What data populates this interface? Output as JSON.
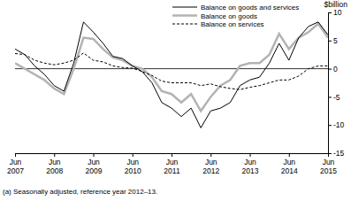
{
  "chart_data": {
    "type": "line",
    "ylabel": "$billion",
    "footnote": "(a) Seasonally adjusted, reference year 2012–13.",
    "categories": [
      "Jun 2007",
      null,
      null,
      null,
      "Jun 2008",
      null,
      null,
      null,
      "Jun 2009",
      null,
      null,
      null,
      "Jun 2010",
      null,
      null,
      null,
      "Jun 2011",
      null,
      null,
      null,
      "Jun 2012",
      null,
      null,
      null,
      "Jun 2013",
      null,
      null,
      null,
      "Jun 2014",
      null,
      null,
      null,
      "Jun 2015"
    ],
    "series": [
      {
        "name": "Balance on goods and services",
        "color": "#000000",
        "line_style": "solid",
        "values": [
          3.5,
          2.5,
          0.5,
          -1,
          -3,
          -4,
          1,
          8.3,
          6.5,
          4.5,
          2.2,
          1.8,
          0.5,
          -0.5,
          -2.5,
          -6,
          -7,
          -8.5,
          -7,
          -10.5,
          -7.5,
          -7,
          -6,
          -3,
          -2,
          -1.5,
          1,
          4.5,
          1.5,
          5.5,
          7.5,
          8.3,
          6
        ]
      },
      {
        "name": "Balance on goods",
        "color": "#b3b3b3",
        "line_style": "solid",
        "values": [
          1,
          0,
          -1,
          -2,
          -3.5,
          -4.5,
          0,
          5.5,
          5.3,
          3.5,
          2,
          1.5,
          0.5,
          0,
          -1.5,
          -4,
          -4.5,
          -6,
          -4.5,
          -7.5,
          -5,
          -3,
          -2,
          0.5,
          1,
          1,
          2.5,
          6.2,
          3.5,
          5.5,
          6.5,
          8,
          5.5
        ]
      },
      {
        "name": "Balance on services",
        "color": "#000000",
        "line_style": "dashed",
        "values": [
          2.7,
          2.5,
          1.5,
          1,
          0.7,
          1,
          1.5,
          2.8,
          1.5,
          1.2,
          0.5,
          0.2,
          0.1,
          -0.5,
          -1.2,
          -2.2,
          -2.5,
          -2.5,
          -2.5,
          -3,
          -2.7,
          -3.2,
          -3.5,
          -3.7,
          -3.3,
          -3,
          -2.5,
          -2,
          -2,
          -1.3,
          0,
          0.5,
          0.5
        ]
      }
    ],
    "ylim": [
      -15,
      10
    ],
    "yticks": [
      -15,
      -10,
      -5,
      0,
      5,
      10
    ],
    "legend": "upper right",
    "grid": false
  }
}
